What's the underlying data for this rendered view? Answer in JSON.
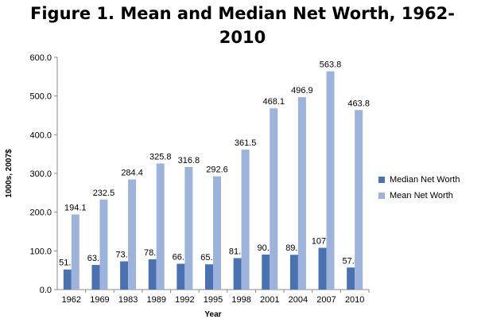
{
  "chart_data": {
    "type": "bar",
    "title": "Figure 1. Mean and Median Net Worth, 1962-2010",
    "title_lines": [
      "Figure 1. Mean and Median Net Worth, 1962-",
      "2010"
    ],
    "xlabel": "Year",
    "ylabel": "1000s, 2007$",
    "ylim": [
      0,
      600
    ],
    "yticks": [
      "0.0",
      "100.0",
      "200.0",
      "300.0",
      "400.0",
      "500.0",
      "600.0"
    ],
    "grid": false,
    "legend_position": "right",
    "categories": [
      "1962",
      "1969",
      "1983",
      "1989",
      "1992",
      "1995",
      "1998",
      "2001",
      "2004",
      "2007",
      "2010"
    ],
    "series": [
      {
        "name": "Median Net Worth",
        "color": "#4a72b0",
        "values": [
          51.9,
          63.6,
          73.0,
          78.2,
          66.7,
          65.3,
          81.2,
          90.5,
          89.9,
          107.8,
          57.0
        ],
        "labels": [
          "51.9",
          "63.6",
          "73.0",
          "78.2",
          "66.7",
          "65.3",
          "81.2",
          "90.5",
          "89.9",
          "107.8",
          "57.0"
        ]
      },
      {
        "name": "Mean Net Worth",
        "color": "#9eb3db",
        "values": [
          194.1,
          232.5,
          284.4,
          325.8,
          316.8,
          292.6,
          361.5,
          468.1,
          496.9,
          563.8,
          463.8
        ],
        "labels": [
          "194.1",
          "232.5",
          "284.4",
          "325.8",
          "316.8",
          "292.6",
          "361.5",
          "468.1",
          "496.9",
          "563.8",
          "463.8"
        ]
      }
    ]
  }
}
